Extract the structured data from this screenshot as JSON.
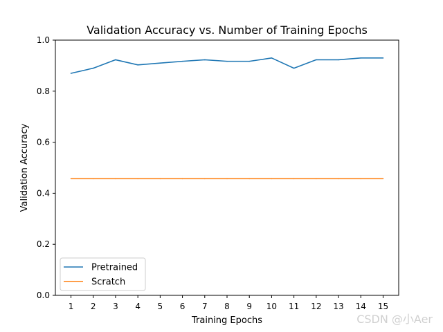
{
  "chart_data": {
    "type": "line",
    "title": "Validation Accuracy vs. Number of Training Epochs",
    "xlabel": "Training Epochs",
    "ylabel": "Validation Accuracy",
    "x": [
      1,
      2,
      3,
      4,
      5,
      6,
      7,
      8,
      9,
      10,
      11,
      12,
      13,
      14,
      15
    ],
    "x_tick_labels": [
      "1",
      "2",
      "3",
      "4",
      "5",
      "6",
      "7",
      "8",
      "9",
      "10",
      "11",
      "12",
      "13",
      "14",
      "15"
    ],
    "y_tick_labels": [
      "0.0",
      "0.2",
      "0.4",
      "0.6",
      "0.8",
      "1.0"
    ],
    "y_ticks": [
      0.0,
      0.2,
      0.4,
      0.6,
      0.8,
      1.0
    ],
    "ylim": [
      0.0,
      1.0
    ],
    "xlim": [
      0.3,
      15.7
    ],
    "grid": false,
    "legend_position": "lower-left",
    "series": [
      {
        "name": "Pretrained",
        "color": "#1f77b4",
        "values": [
          0.87,
          0.89,
          0.923,
          0.903,
          0.91,
          0.917,
          0.923,
          0.917,
          0.917,
          0.93,
          0.89,
          0.923,
          0.923,
          0.93,
          0.93
        ]
      },
      {
        "name": "Scratch",
        "color": "#ff7f0e",
        "values": [
          0.457,
          0.457,
          0.457,
          0.457,
          0.457,
          0.457,
          0.457,
          0.457,
          0.457,
          0.457,
          0.457,
          0.457,
          0.457,
          0.457,
          0.457
        ]
      }
    ]
  },
  "watermark": "CSDN @小Aer"
}
